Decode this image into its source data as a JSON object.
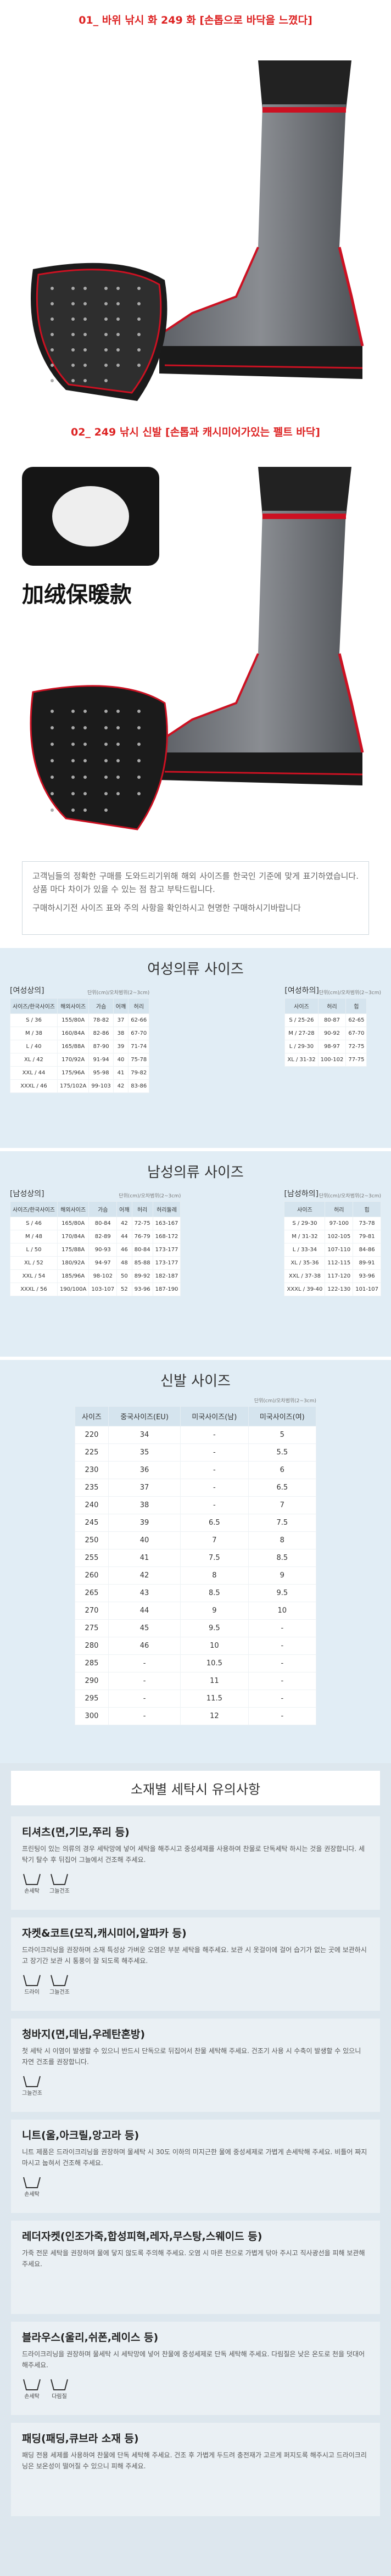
{
  "products": [
    {
      "label": "01_ 바위 낚시 화 249 화 [손톱으로 바닥을 느꼈다]"
    },
    {
      "label": "02_ 249 낚시 신발 [손톱과 캐시미어가있는 펠트 바닥]",
      "badge": "加绒保暖款"
    }
  ],
  "notice": {
    "paragraphs": [
      "고객님들의 정확한 구매를 도와드리기위해 해외 사이즈를 한국인 기준에 맞게 표기하였습니다. 상품 마다 차이가 있을 수 있는 점 참고 부탁드립니다.",
      "구매하시기전 사이즈 표와 주의 사항을 확인하시고 현명한 구매하시기바랍니다"
    ]
  },
  "size_sections": [
    {
      "title": "여성의류 사이즈",
      "tables": [
        {
          "caption": "[여성상의]",
          "unit": "단위(cm)/오차범위(2~3cm)",
          "headers": [
            "사이즈/한국사이즈",
            "해외사이즈",
            "가슴",
            "어깨",
            "허리"
          ],
          "rows": [
            [
              "S / 36",
              "155/80A",
              "78-82",
              "37",
              "62-66"
            ],
            [
              "M / 38",
              "160/84A",
              "82-86",
              "38",
              "67-70"
            ],
            [
              "L / 40",
              "165/88A",
              "87-90",
              "39",
              "71-74"
            ],
            [
              "XL / 42",
              "170/92A",
              "91-94",
              "40",
              "75-78"
            ],
            [
              "XXL / 44",
              "175/96A",
              "95-98",
              "41",
              "79-82"
            ],
            [
              "XXXL / 46",
              "175/102A",
              "99-103",
              "42",
              "83-86"
            ]
          ]
        },
        {
          "caption": "[여성하의]",
          "unit": "단위(cm)/오차범위(2~3cm)",
          "headers": [
            "사이즈",
            "허리",
            "힙"
          ],
          "rows": [
            [
              "S / 25-26",
              "80-87",
              "62-65"
            ],
            [
              "M / 27-28",
              "90-92",
              "67-70"
            ],
            [
              "L / 29-30",
              "98-97",
              "72-75"
            ],
            [
              "XL / 31-32",
              "100-102",
              "77-75"
            ]
          ]
        }
      ]
    },
    {
      "title": "남성의류 사이즈",
      "tables": [
        {
          "caption": "[남성상의]",
          "unit": "단위(cm)/오차범위(2~3cm)",
          "headers": [
            "사이즈/한국사이즈",
            "해외사이즈",
            "가슴",
            "어깨",
            "허리",
            "허리둘레"
          ],
          "rows": [
            [
              "S / 46",
              "165/80A",
              "80-84",
              "42",
              "72-75",
              "163-167"
            ],
            [
              "M / 48",
              "170/84A",
              "82-89",
              "44",
              "76-79",
              "168-172"
            ],
            [
              "L / 50",
              "175/88A",
              "90-93",
              "46",
              "80-84",
              "173-177"
            ],
            [
              "XL / 52",
              "180/92A",
              "94-97",
              "48",
              "85-88",
              "173-177"
            ],
            [
              "XXL / 54",
              "185/96A",
              "98-102",
              "50",
              "89-92",
              "182-187"
            ],
            [
              "XXXL / 56",
              "190/100A",
              "103-107",
              "52",
              "93-96",
              "187-190"
            ]
          ]
        },
        {
          "caption": "[남성하의]",
          "unit": "단위(cm)/오차범위(2~3cm)",
          "headers": [
            "사이즈",
            "허리",
            "힙"
          ],
          "rows": [
            [
              "S / 29-30",
              "97-100",
              "73-78"
            ],
            [
              "M / 31-32",
              "102-105",
              "79-81"
            ],
            [
              "L / 33-34",
              "107-110",
              "84-86"
            ],
            [
              "XL / 35-36",
              "112-115",
              "89-91"
            ],
            [
              "XXL / 37-38",
              "117-120",
              "93-96"
            ],
            [
              "XXXL / 39-40",
              "122-130",
              "101-107"
            ]
          ]
        }
      ]
    }
  ],
  "shoe_size": {
    "title": "신발 사이즈",
    "unit": "단위(cm)/오차범위(2~3cm)",
    "headers": [
      "사이즈",
      "중국사이즈(EU)",
      "미국사이즈(남)",
      "미국사이즈(여)"
    ],
    "rows": [
      [
        "220",
        "34",
        "-",
        "5"
      ],
      [
        "225",
        "35",
        "-",
        "5.5"
      ],
      [
        "230",
        "36",
        "-",
        "6"
      ],
      [
        "235",
        "37",
        "-",
        "6.5"
      ],
      [
        "240",
        "38",
        "-",
        "7"
      ],
      [
        "245",
        "39",
        "6.5",
        "7.5"
      ],
      [
        "250",
        "40",
        "7",
        "8"
      ],
      [
        "255",
        "41",
        "7.5",
        "8.5"
      ],
      [
        "260",
        "42",
        "8",
        "9"
      ],
      [
        "265",
        "43",
        "8.5",
        "9.5"
      ],
      [
        "270",
        "44",
        "9",
        "10"
      ],
      [
        "275",
        "45",
        "9.5",
        "-"
      ],
      [
        "280",
        "46",
        "10",
        "-"
      ],
      [
        "285",
        "-",
        "10.5",
        "-"
      ],
      [
        "290",
        "-",
        "11",
        "-"
      ],
      [
        "295",
        "-",
        "11.5",
        "-"
      ],
      [
        "300",
        "-",
        "12",
        "-"
      ]
    ]
  },
  "care": {
    "title": "소재별 세탁시 유의사항",
    "items": [
      {
        "name": "티셔츠(면,기모,쭈리 등)",
        "text": "프린팅이 있는 의류의 경우 세탁망에 넣어 세탁을 해주시고 중성세제를 사용하여 찬물로 단독세탁 하시는 것을 권장합니다. 세탁기 탈수 후 뒤집어 그늘에서 건조해 주세요.",
        "icons": [
          "손세탁",
          "그늘건조"
        ]
      },
      {
        "name": "자켓&코트(모직,캐시미어,알파카 등)",
        "text": "드라이크리닝을 권장하며 소재 특성상 가벼운 오염은 부분 세탁을 해주세요. 보관 시 옷걸이에 걸어 습기가 없는 곳에 보관하시고 장기간 보관 시 통풍이 잘 되도록 해주세요.",
        "icons": [
          "드라이",
          "그늘건조"
        ]
      },
      {
        "name": "청바지(면,데님,우레탄혼방)",
        "text": "첫 세탁 시 이염이 발생할 수 있으니 반드시 단독으로 뒤집어서 찬물 세탁해 주세요. 건조기 사용 시 수축이 발생할 수 있으니 자연 건조를 권장합니다.",
        "icons": [
          "그늘건조"
        ]
      },
      {
        "name": "니트(울,아크릴,앙고라 등)",
        "text": "니트 제품은 드라이크리닝을 권장하며 물세탁 시 30도 이하의 미지근한 물에 중성세제로 가볍게 손세탁해 주세요. 비틀어 짜지 마시고 눕혀서 건조해 주세요.",
        "icons": [
          "손세탁"
        ]
      },
      {
        "name": "레더자켓(인조가죽,합성피혁,레자,무스탕,스웨이드 등)",
        "text": "가죽 전문 세탁을 권장하며 물에 닿지 않도록 주의해 주세요. 오염 시 마른 천으로 가볍게 닦아 주시고 직사광선을 피해 보관해 주세요.",
        "icons": []
      },
      {
        "name": "블라우스(울리,쉬폰,레이스 등)",
        "text": "드라이크리닝을 권장하며 물세탁 시 세탁망에 넣어 찬물에 중성세제로 단독 세탁해 주세요. 다림질은 낮은 온도로 천을 덧대어 해주세요.",
        "icons": [
          "손세탁",
          "다림질"
        ]
      },
      {
        "name": "패딩(패딩,큐브라 소재 등)",
        "text": "패딩 전용 세제를 사용하여 찬물에 단독 세탁해 주세요. 건조 후 가볍게 두드려 충전재가 고르게 퍼지도록 해주시고 드라이크리닝은 보온성이 떨어질 수 있으니 피해 주세요.",
        "icons": []
      }
    ]
  }
}
